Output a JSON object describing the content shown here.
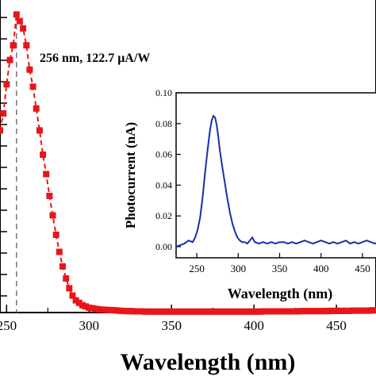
{
  "chart_data": [
    {
      "type": "line",
      "markers": "square",
      "line_style": "dashed",
      "color": "#e8151b",
      "xlabel": "Wavelength (nm)",
      "ylabel": "",
      "xlim": [
        246,
        474
      ],
      "ylim": [
        0,
        130
      ],
      "x_ticks": [
        250,
        300,
        350,
        400,
        450
      ],
      "x_tick_labels": [
        "250",
        "300",
        "350",
        "400",
        "450"
      ],
      "annotation": "256 nm, 122.7 μA/W",
      "reference_line_x": 256,
      "series": [
        {
          "x": [
            246,
            248,
            250,
            252,
            254,
            256,
            258,
            260,
            262,
            264,
            266,
            268,
            270,
            272,
            274,
            276,
            278,
            280,
            282,
            284,
            286,
            288,
            290,
            292,
            294,
            296,
            298,
            300,
            302,
            304,
            306,
            308,
            310,
            312,
            314,
            316,
            318,
            320,
            322,
            324,
            326,
            328,
            330,
            332,
            334,
            336,
            338,
            340,
            342,
            344,
            346,
            348,
            350,
            352,
            354,
            356,
            358,
            360,
            362,
            364,
            366,
            368,
            370,
            372,
            374,
            376,
            378,
            380,
            382,
            384,
            386,
            388,
            390,
            392,
            394,
            396,
            398,
            400,
            402,
            404,
            406,
            408,
            410,
            412,
            414,
            416,
            418,
            420,
            422,
            424,
            426,
            428,
            430,
            432,
            434,
            436,
            438,
            440,
            442,
            444,
            446,
            448,
            450,
            452,
            454,
            456,
            458,
            460,
            462,
            464,
            466,
            468,
            470,
            472,
            474
          ],
          "y": [
            75,
            82,
            94,
            104,
            110,
            122.7,
            120,
            117,
            110,
            100,
            93,
            84,
            75,
            65,
            57,
            48,
            40,
            32,
            25,
            19,
            14,
            10,
            7,
            5,
            4,
            3,
            2.5,
            2,
            1.8,
            1.5,
            1.3,
            1.2,
            1.1,
            1.0,
            1.0,
            0.9,
            0.8,
            0.7,
            0.6,
            0.6,
            0.6,
            0.5,
            0.5,
            0.5,
            0.4,
            0.4,
            0.4,
            0.4,
            0.4,
            0.4,
            0.4,
            0.4,
            0.4,
            0.4,
            0.4,
            0.4,
            0.4,
            0.4,
            0.4,
            0.4,
            0.4,
            0.4,
            0.4,
            0.4,
            0.4,
            0.4,
            0.4,
            0.4,
            0.4,
            0.4,
            0.4,
            0.4,
            0.4,
            0.4,
            0.4,
            0.4,
            0.4,
            0.4,
            0.4,
            0.4,
            0.5,
            0.5,
            0.5,
            0.5,
            0.5,
            0.5,
            0.5,
            0.5,
            0.5,
            0.5,
            0.5,
            0.6,
            0.6,
            0.6,
            0.6,
            0.6,
            0.6,
            0.6,
            0.6,
            0.6,
            0.7,
            0.7,
            0.7,
            0.7,
            0.7,
            0.7,
            0.7,
            0.8,
            0.8,
            0.8,
            0.8,
            0.8,
            0.8,
            0.9,
            0.9
          ]
        }
      ]
    },
    {
      "type": "line",
      "color": "#1a2ea8",
      "xlabel": "Wavelength (nm)",
      "ylabel": "Photocurrent (nA)",
      "xlim": [
        225,
        474
      ],
      "ylim": [
        -0.01,
        0.1
      ],
      "x_ticks": [
        250,
        300,
        350,
        400,
        450
      ],
      "x_tick_labels": [
        "250",
        "300",
        "350",
        "400",
        "450"
      ],
      "y_ticks": [
        0.0,
        0.02,
        0.04,
        0.06,
        0.08,
        0.1
      ],
      "y_tick_labels": [
        "0.00",
        "0.02",
        "0.04",
        "0.06",
        "0.08",
        "0.10"
      ],
      "series": [
        {
          "x": [
            225,
            230,
            235,
            240,
            245,
            248,
            251,
            254,
            257,
            260,
            263,
            266,
            268,
            270,
            272,
            274,
            276,
            278,
            281,
            284,
            287,
            290,
            293,
            296,
            299,
            302,
            305,
            308,
            311,
            314,
            317,
            320,
            325,
            330,
            335,
            340,
            345,
            350,
            355,
            360,
            365,
            370,
            375,
            380,
            385,
            390,
            395,
            400,
            405,
            410,
            415,
            420,
            425,
            430,
            435,
            440,
            445,
            450,
            455,
            460,
            465,
            470,
            474
          ],
          "y": [
            0.0,
            0.001,
            0.002,
            0.004,
            0.003,
            0.006,
            0.011,
            0.019,
            0.032,
            0.048,
            0.063,
            0.076,
            0.082,
            0.085,
            0.084,
            0.079,
            0.071,
            0.062,
            0.051,
            0.041,
            0.031,
            0.022,
            0.015,
            0.01,
            0.006,
            0.004,
            0.003,
            0.003,
            0.002,
            0.004,
            0.006,
            0.003,
            0.002,
            0.003,
            0.002,
            0.003,
            0.002,
            0.003,
            0.003,
            0.002,
            0.003,
            0.002,
            0.003,
            0.004,
            0.003,
            0.002,
            0.003,
            0.004,
            0.003,
            0.002,
            0.003,
            0.002,
            0.003,
            0.004,
            0.002,
            0.003,
            0.002,
            0.003,
            0.004,
            0.003,
            0.002,
            0.003,
            0.005
          ]
        }
      ]
    }
  ]
}
